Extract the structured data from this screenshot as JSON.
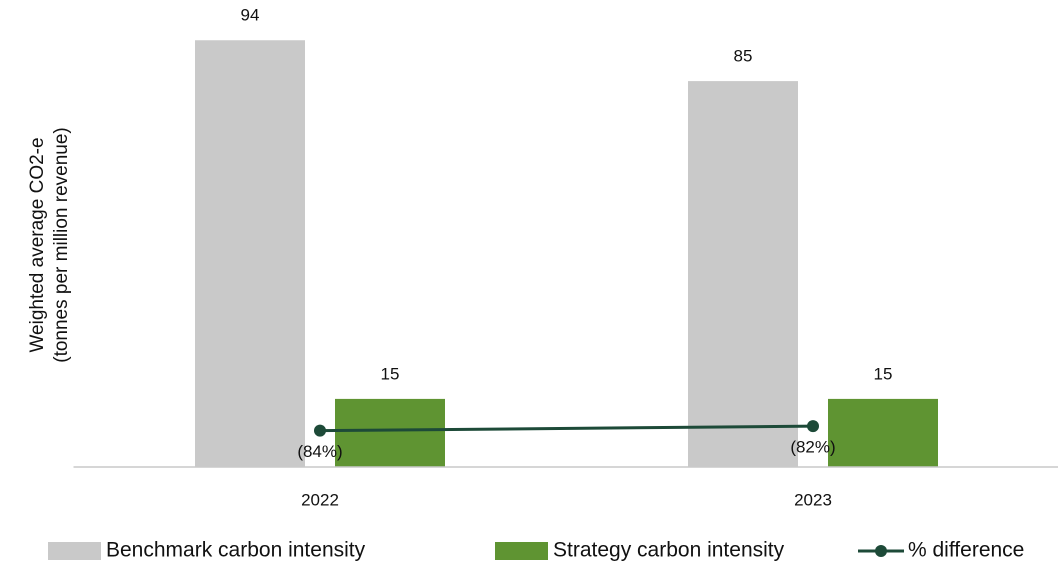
{
  "chart_data": {
    "type": "bar",
    "y_axis_label": [
      "Weighted average CO2-e",
      "(tonnes per million revenue)"
    ],
    "categories": [
      "2022",
      "2023"
    ],
    "series": [
      {
        "name": "Benchmark carbon intensity",
        "type": "bar",
        "color": "#c9c9c9",
        "values": [
          94,
          85
        ]
      },
      {
        "name": "Strategy carbon intensity",
        "type": "bar",
        "color": "#5f9432",
        "values": [
          15,
          15
        ]
      },
      {
        "name": "% difference",
        "type": "line",
        "axis": "y2",
        "color": "#1d4a38",
        "values": [
          -84,
          -82
        ],
        "value_labels": [
          "(84%)",
          "(82%)"
        ]
      }
    ],
    "ylim": [
      0,
      100
    ],
    "y2lim": [
      -100,
      100
    ],
    "legend": "bottom"
  }
}
